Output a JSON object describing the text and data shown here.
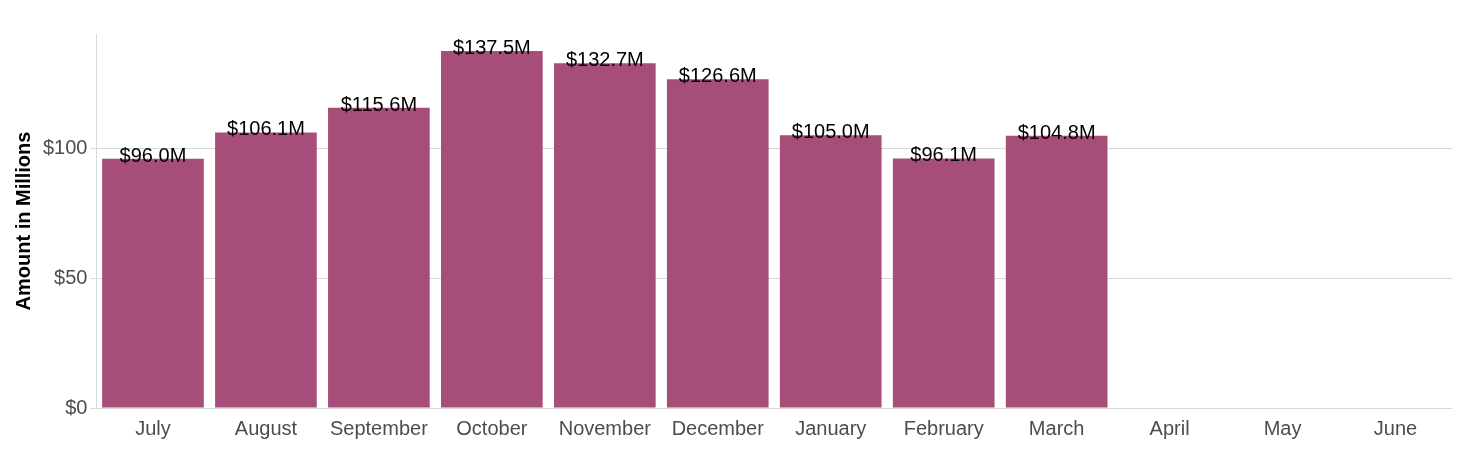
{
  "chart_data": {
    "type": "bar",
    "ylabel": "Amount in Millions",
    "categories": [
      "July",
      "August",
      "September",
      "October",
      "November",
      "December",
      "January",
      "February",
      "March",
      "April",
      "May",
      "June"
    ],
    "values": [
      96.0,
      106.1,
      115.6,
      137.5,
      132.7,
      126.6,
      105.0,
      96.1,
      104.8,
      null,
      null,
      null
    ],
    "value_labels": [
      "$96.0M",
      "$106.1M",
      "$115.6M",
      "$137.5M",
      "$132.7M",
      "$126.6M",
      "$105.0M",
      "$96.1M",
      "$104.8M",
      null,
      null,
      null
    ],
    "color": "#a64d79",
    "ylim": [
      0,
      144
    ],
    "yticks": [
      {
        "value": 0,
        "label": "$0"
      },
      {
        "value": 50,
        "label": "$50"
      },
      {
        "value": 100,
        "label": "$100"
      }
    ],
    "grid": "y",
    "legend": false
  }
}
